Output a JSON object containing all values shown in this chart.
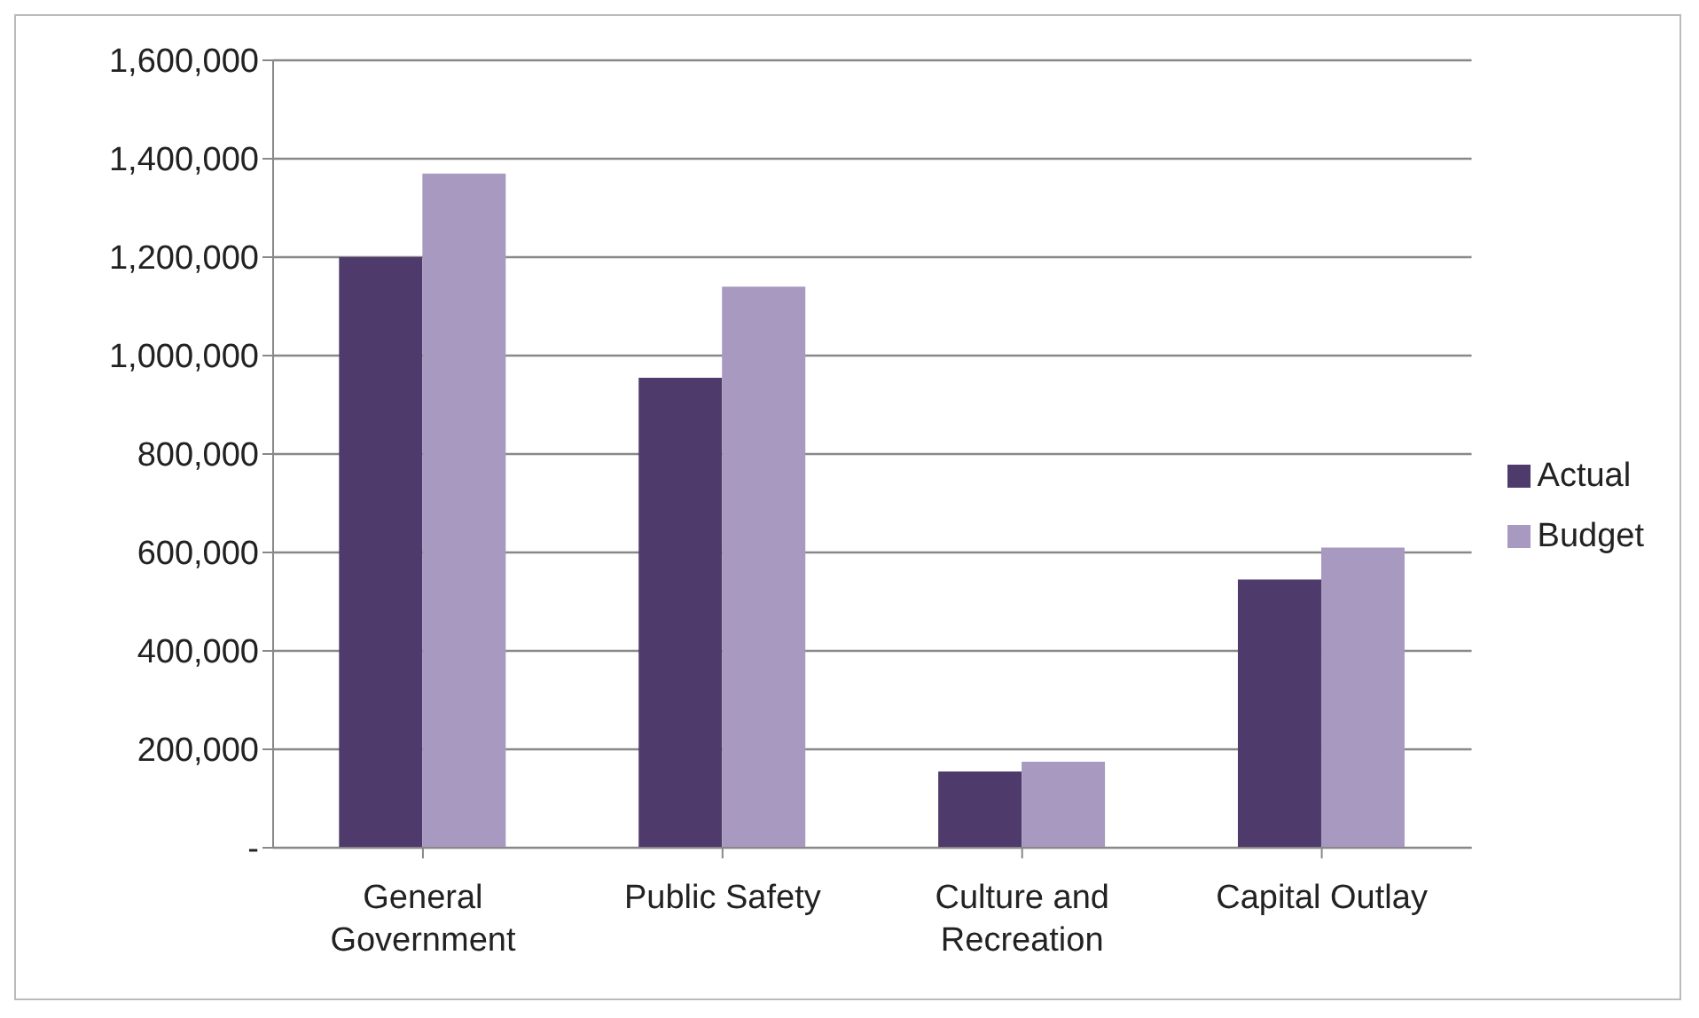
{
  "chart_data": {
    "type": "bar",
    "categories": [
      "General Government",
      "Public Safety",
      "Culture and Recreation",
      "Capital Outlay"
    ],
    "series": [
      {
        "name": "Actual",
        "color": "#4f3b6b",
        "values": [
          1200000,
          955000,
          155000,
          545000
        ]
      },
      {
        "name": "Budget",
        "color": "#a899c0",
        "values": [
          1370000,
          1140000,
          175000,
          610000
        ]
      }
    ],
    "ylim": [
      0,
      1600000
    ],
    "yticks": [
      {
        "value": 0,
        "label": "-"
      },
      {
        "value": 200000,
        "label": "200,000"
      },
      {
        "value": 400000,
        "label": "400,000"
      },
      {
        "value": 600000,
        "label": "600,000"
      },
      {
        "value": 800000,
        "label": "800,000"
      },
      {
        "value": 1000000,
        "label": "1,000,000"
      },
      {
        "value": 1200000,
        "label": "1,200,000"
      },
      {
        "value": 1400000,
        "label": "1,400,000"
      },
      {
        "value": 1600000,
        "label": "1,600,000"
      }
    ],
    "grid": "y",
    "legend": "right"
  }
}
